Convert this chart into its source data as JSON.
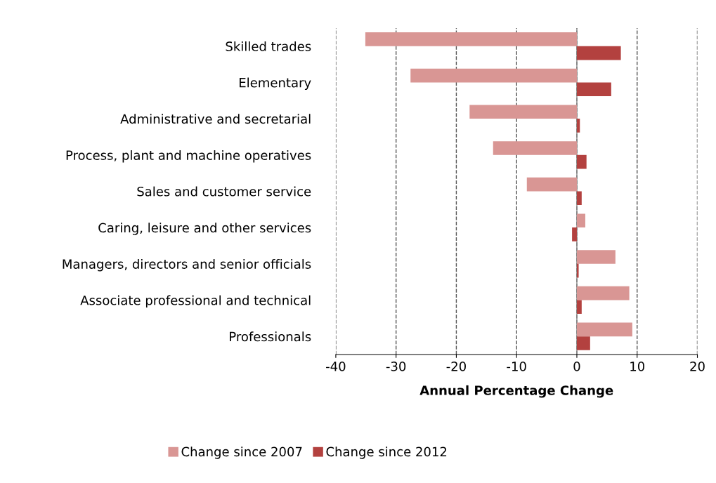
{
  "chart_data": {
    "type": "bar",
    "orientation": "horizontal",
    "xlabel": "Annual Percentage Change",
    "categories": [
      "Skilled trades",
      "Elementary",
      "Administrative and secretarial",
      "Process, plant and machine operatives",
      "Sales and customer service",
      "Caring, leisure and other services",
      "Managers, directors and senior officials",
      "Associate professional and technical",
      "Professionals"
    ],
    "series": [
      {
        "name": "Change since 2007",
        "color": "#d99694",
        "values": [
          -35.1,
          -27.6,
          -17.8,
          -13.9,
          -8.3,
          1.4,
          6.4,
          8.7,
          9.2
        ]
      },
      {
        "name": "Change since 2012",
        "color": "#b3413f",
        "values": [
          7.3,
          5.7,
          0.5,
          1.6,
          0.8,
          -0.8,
          0.3,
          0.8,
          2.2
        ]
      }
    ],
    "xlim": [
      -40,
      20
    ],
    "xticks": [
      -40,
      -30,
      -20,
      -10,
      0,
      10,
      20
    ],
    "grid": "x",
    "legend": "bottom"
  }
}
